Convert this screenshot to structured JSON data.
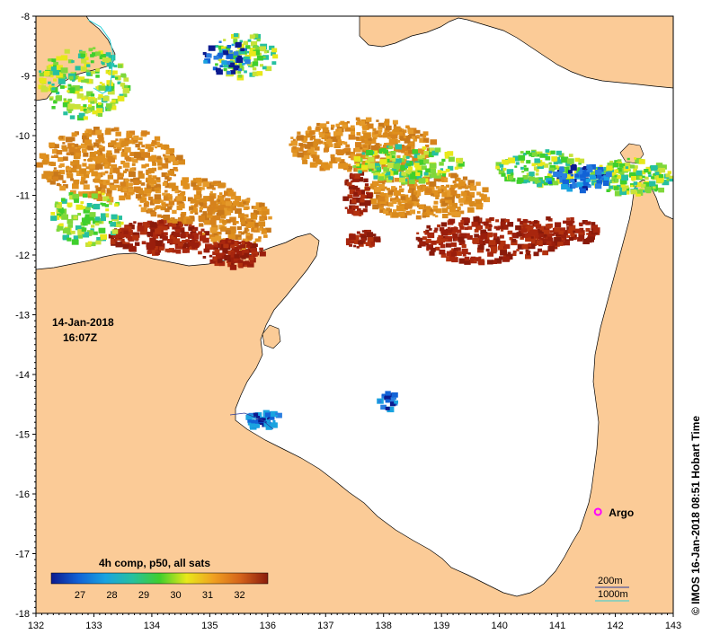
{
  "map": {
    "lon_range": [
      132,
      143
    ],
    "lat_range": [
      -18,
      -8
    ],
    "lon_ticks": [
      "132",
      "133",
      "134",
      "135",
      "136",
      "137",
      "138",
      "139",
      "140",
      "141",
      "142",
      "143"
    ],
    "lat_ticks": [
      "-8",
      "-9",
      "-10",
      "-11",
      "-12",
      "-13",
      "-14",
      "-15",
      "-16",
      "-17",
      "-18"
    ],
    "land_color": "#fbcb97",
    "ocean_color": "#ffffff"
  },
  "timestamp": {
    "date": "14-Jan-2018",
    "time": "16:07Z"
  },
  "colorbar": {
    "title": "4h comp, p50, all sats",
    "tick_labels": [
      "27",
      "28",
      "29",
      "30",
      "31",
      "32"
    ],
    "stops": [
      "#0b1a8f",
      "#1262d6",
      "#1aa3e0",
      "#26c0a0",
      "#3fcf2d",
      "#e8e81a",
      "#f0a020",
      "#d4621a",
      "#8a1c0c"
    ]
  },
  "contours": {
    "label_200": "200m",
    "label_1000": "1000m",
    "color_200": "#2a3b9c",
    "color_1000": "#2ed2d8"
  },
  "argo": {
    "label": "Argo",
    "lon": 141.7,
    "lat": -16.3,
    "color": "#ff00ff"
  },
  "credit": "© IMOS 16-Jan-2018 08:51 Hobart Time"
}
